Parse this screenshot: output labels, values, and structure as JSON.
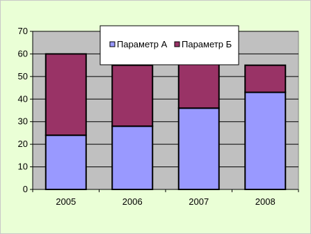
{
  "chart_data": {
    "type": "bar",
    "stacked": true,
    "categories": [
      "2005",
      "2006",
      "2007",
      "2008"
    ],
    "series": [
      {
        "name": "Параметр А",
        "values": [
          24,
          28,
          36,
          43
        ],
        "color": "#9999ff"
      },
      {
        "name": "Параметр Б",
        "values": [
          36,
          27,
          20,
          12
        ],
        "color": "#993366"
      }
    ],
    "ylim": [
      0,
      70
    ],
    "yticks": [
      0,
      10,
      20,
      30,
      40,
      50,
      60,
      70
    ],
    "grid": true,
    "legend_position": "top-center",
    "colors": {
      "figure_background": "#eaffd6",
      "plot_background": "#c0c0c0",
      "bar_outline": "#000000"
    }
  }
}
